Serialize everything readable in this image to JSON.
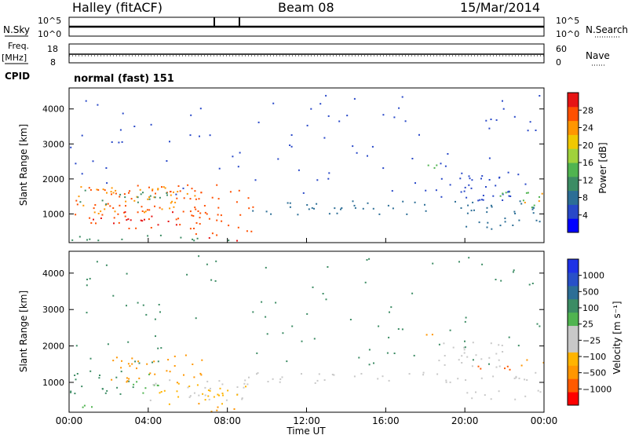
{
  "header": {
    "station": "Halley (fitACF)",
    "beam": "Beam 08",
    "date": "15/Mar/2014"
  },
  "strips": {
    "nsky_label": "N.Sky",
    "nsky_ticks": [
      "10^5",
      "10^0"
    ],
    "nsearch_label": "N.Search",
    "nsearch_ticks": [
      "10^5",
      "10^0"
    ],
    "freq_label": "Freq.",
    "freq_unit": "[MHz]",
    "freq_ticks": [
      "18",
      "8"
    ],
    "nave_label": "Nave",
    "nave_ticks": [
      "60",
      "0"
    ],
    "cpid_label": "CPID",
    "cpid_value": "normal (fast) 151"
  },
  "chart_data": [
    {
      "type": "heatmap",
      "name": "power-panel",
      "xlabel": "",
      "ylabel": "Slant Range [km]",
      "xlim_hours": [
        0,
        24
      ],
      "ylim": [
        180,
        4600
      ],
      "yticks": [
        "1000",
        "2000",
        "3000",
        "4000"
      ],
      "colorbar": {
        "label": "Power [dB]",
        "ticks": [
          "28",
          "24",
          "20",
          "16",
          "12",
          "8",
          "4"
        ],
        "colors": [
          "#0000ff",
          "#2848c8",
          "#2c6e96",
          "#3c8c64",
          "#50b450",
          "#a0d23c",
          "#f0c800",
          "#ff9600",
          "#ff5000",
          "#e61414"
        ]
      },
      "regions": [
        {
          "t0": 0.2,
          "t1": 9.3,
          "r0": 600,
          "r1": 1850,
          "c": "#ff5000"
        },
        {
          "t0": 1.0,
          "t1": 5.5,
          "r0": 700,
          "r1": 1100,
          "c": "#e61414"
        },
        {
          "t0": 0.3,
          "t1": 6.5,
          "r0": 1000,
          "r1": 1800,
          "c": "#ff9600"
        },
        {
          "t0": 0.3,
          "t1": 5.0,
          "r0": 1300,
          "r1": 1700,
          "c": "#3c8c64"
        },
        {
          "t0": 6.0,
          "t1": 9.2,
          "r0": 400,
          "r1": 700,
          "c": "#ff5000"
        },
        {
          "t0": 7.0,
          "t1": 9.0,
          "r0": 250,
          "r1": 350,
          "c": "#e61414"
        },
        {
          "t0": 0.0,
          "t1": 9.5,
          "r0": 250,
          "r1": 420,
          "c": "#3c8c64"
        },
        {
          "t0": 9.0,
          "t1": 24.0,
          "r0": 1000,
          "r1": 1400,
          "c": "#2c6e96"
        },
        {
          "t0": 18.5,
          "t1": 22.5,
          "r0": 1400,
          "r1": 2200,
          "c": "#2848c8"
        },
        {
          "t0": 21.5,
          "t1": 24.0,
          "r0": 1200,
          "r1": 1700,
          "c": "#50b450"
        },
        {
          "t0": 22.8,
          "t1": 24.0,
          "r0": 1300,
          "r1": 1600,
          "c": "#ff9600"
        },
        {
          "t0": 18.0,
          "t1": 18.6,
          "r0": 2200,
          "r1": 2800,
          "c": "#50b450"
        },
        {
          "t0": 20.0,
          "t1": 24.0,
          "r0": 550,
          "r1": 900,
          "c": "#2c6e96"
        },
        {
          "t0": 0.0,
          "t1": 24.0,
          "r0": 1500,
          "r1": 4500,
          "c": "#2848c8",
          "sparse": true
        }
      ]
    },
    {
      "type": "heatmap",
      "name": "velocity-panel",
      "xlabel": "Time UT",
      "ylabel": "Slant Range [km]",
      "xlim_hours": [
        0,
        24
      ],
      "ylim": [
        180,
        4600
      ],
      "yticks": [
        "1000",
        "2000",
        "3000",
        "4000"
      ],
      "xticks": [
        "00:00",
        "04:00",
        "08:00",
        "12:00",
        "16:00",
        "20:00",
        "00:00"
      ],
      "colorbar": {
        "label": "Velocity [m s⁻¹]",
        "ticks": [
          "1000",
          "500",
          "100",
          "25",
          "−25",
          "−100",
          "−500",
          "−1000"
        ],
        "colors": [
          "#ff0000",
          "#ff5a00",
          "#ff9600",
          "#ffb400",
          "#c8c8c8",
          "#c8c8c8",
          "#50b450",
          "#3c8c64",
          "#2c6e96",
          "#2850c8",
          "#1e32e6"
        ]
      },
      "regions": [
        {
          "t0": 0.0,
          "t1": 3.5,
          "r0": 700,
          "r1": 1400,
          "c": "#3c8c64"
        },
        {
          "t0": 3.0,
          "t1": 4.5,
          "r0": 700,
          "r1": 1300,
          "c": "#50b450"
        },
        {
          "t0": 2.0,
          "t1": 7.0,
          "r0": 1000,
          "r1": 1800,
          "c": "#ff9600"
        },
        {
          "t0": 4.0,
          "t1": 9.0,
          "r0": 500,
          "r1": 1100,
          "c": "#c8c8c8"
        },
        {
          "t0": 4.5,
          "t1": 9.3,
          "r0": 400,
          "r1": 1000,
          "c": "#ffb400"
        },
        {
          "t0": 6.0,
          "t1": 8.5,
          "r0": 200,
          "r1": 450,
          "c": "#ff9600"
        },
        {
          "t0": 0.0,
          "t1": 2.0,
          "r0": 250,
          "r1": 420,
          "c": "#50b450"
        },
        {
          "t0": 9.0,
          "t1": 24.0,
          "r0": 1000,
          "r1": 1300,
          "c": "#c8c8c8"
        },
        {
          "t0": 18.3,
          "t1": 22.0,
          "r0": 1400,
          "r1": 2200,
          "c": "#c8c8c8"
        },
        {
          "t0": 20.5,
          "t1": 22.3,
          "r0": 1300,
          "r1": 1600,
          "c": "#ff5a00"
        },
        {
          "t0": 22.8,
          "t1": 24.0,
          "r0": 1300,
          "r1": 1650,
          "c": "#ff9600"
        },
        {
          "t0": 18.0,
          "t1": 18.6,
          "r0": 2300,
          "r1": 2700,
          "c": "#ff9600"
        },
        {
          "t0": 20.0,
          "t1": 24.0,
          "r0": 550,
          "r1": 850,
          "c": "#c8c8c8"
        },
        {
          "t0": 0.0,
          "t1": 24.0,
          "r0": 1500,
          "r1": 4500,
          "c": "#3c8c64",
          "sparse": true
        }
      ]
    }
  ]
}
